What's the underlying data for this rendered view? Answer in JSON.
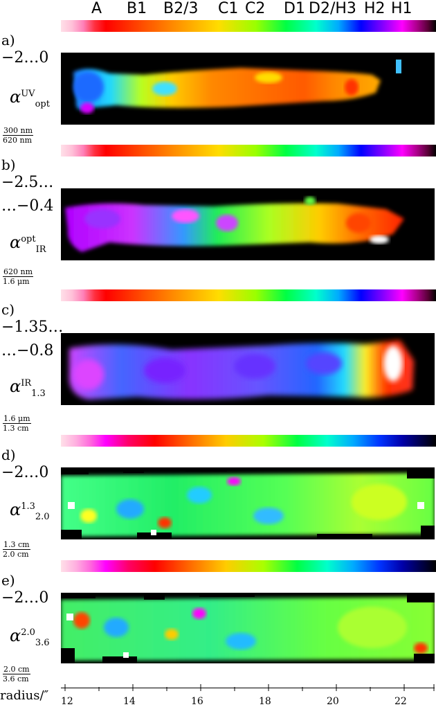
{
  "top_labels": [
    "A",
    "B1",
    "B2/3",
    "C1",
    "C2",
    "D1",
    "D2/H3",
    "H2",
    "H1"
  ],
  "panels": [
    {
      "letter": "a)",
      "range_line1": "−2…0",
      "range_line2": "",
      "alpha_sup": "UV",
      "alpha_sub": "opt",
      "frac_num": "300 nm",
      "frac_den": "620 nm",
      "colorbar": "standard"
    },
    {
      "letter": "b)",
      "range_line1": "−2.5…",
      "range_line2": "…−0.4",
      "alpha_sup": "opt",
      "alpha_sub": "IR",
      "frac_num": "620 nm",
      "frac_den": "1.6 μm",
      "colorbar": "standard"
    },
    {
      "letter": "c)",
      "range_line1": "−1.35…",
      "range_line2": "…−0.8",
      "alpha_sup": "IR",
      "alpha_sub": "1.3",
      "frac_num": "1.6 μm",
      "frac_den": "1.3 cm",
      "colorbar": "standard"
    },
    {
      "letter": "d)",
      "range_line1": "−2…0",
      "range_line2": "",
      "alpha_sup": "1.3",
      "alpha_sub": "2.0",
      "frac_num": "1.3 cm",
      "frac_den": "2.0 cm",
      "colorbar": "alternate"
    },
    {
      "letter": "e)",
      "range_line1": "−2…0",
      "range_line2": "",
      "alpha_sup": "2.0",
      "alpha_sub": "3.6",
      "frac_num": "2.0 cm",
      "frac_den": "3.6 cm",
      "colorbar": "alternate"
    }
  ],
  "axis": {
    "label": "radius/″",
    "ticks": [
      "12",
      "14",
      "16",
      "18",
      "20",
      "22"
    ]
  },
  "alpha_symbol": "α"
}
